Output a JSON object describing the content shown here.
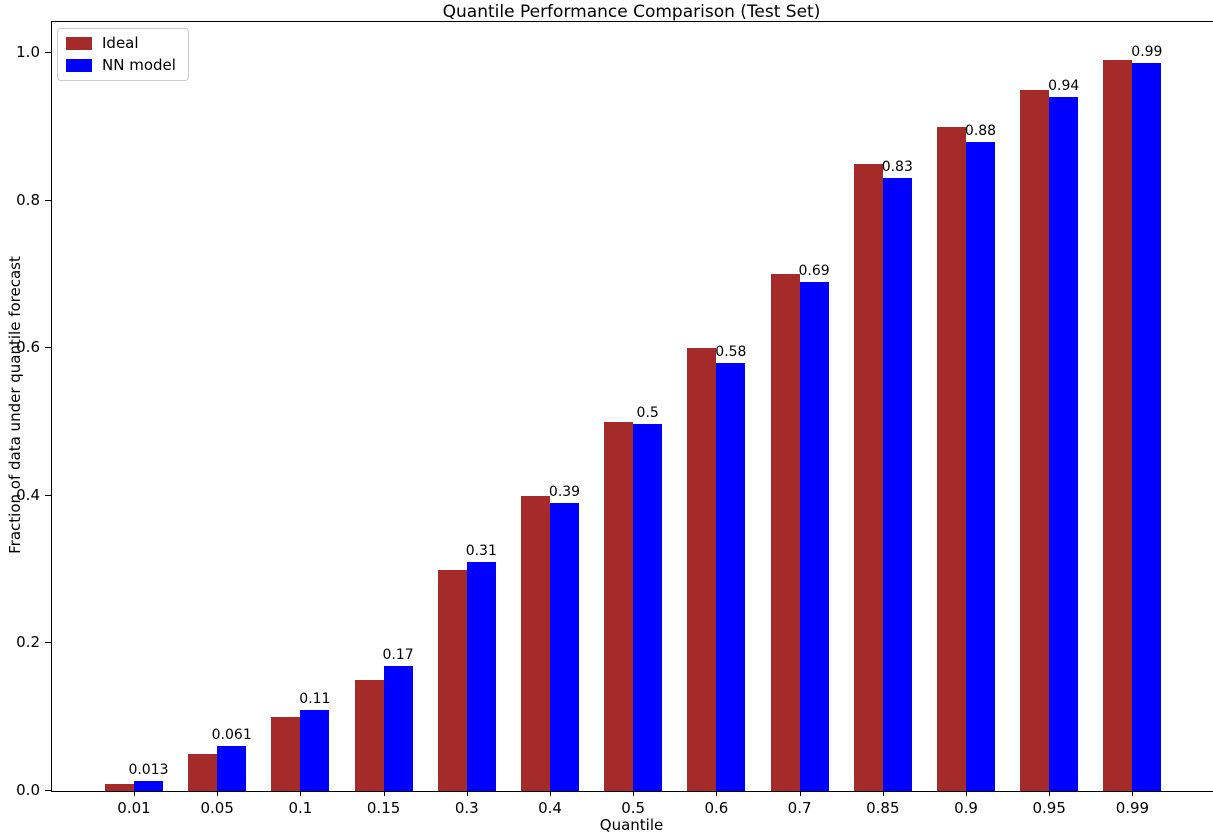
{
  "chart_data": {
    "type": "bar",
    "title": "Quantile Performance Comparison (Test Set)",
    "xlabel": "Quantile",
    "ylabel": "Fraction of data under quantile forecast",
    "categories": [
      "0.01",
      "0.05",
      "0.1",
      "0.15",
      "0.3",
      "0.4",
      "0.5",
      "0.6",
      "0.7",
      "0.85",
      "0.9",
      "0.95",
      "0.99"
    ],
    "series": [
      {
        "name": "Ideal",
        "color": "#A52A2A",
        "values": [
          0.01,
          0.05,
          0.1,
          0.15,
          0.3,
          0.4,
          0.5,
          0.6,
          0.7,
          0.85,
          0.9,
          0.95,
          0.99
        ]
      },
      {
        "name": "NN model",
        "color": "#0000FF",
        "values": [
          0.013,
          0.061,
          0.11,
          0.17,
          0.31,
          0.39,
          0.497,
          0.58,
          0.69,
          0.83,
          0.88,
          0.94,
          0.987
        ],
        "bar_labels": [
          "0.013",
          "0.061",
          "0.11",
          "0.17",
          "0.31",
          "0.39",
          "0.5",
          "0.58",
          "0.69",
          "0.83",
          "0.88",
          "0.94",
          "0.99"
        ]
      }
    ],
    "yticks": [
      "0.0",
      "0.2",
      "0.4",
      "0.6",
      "0.8",
      "1.0"
    ],
    "ylim": [
      0,
      1.042
    ],
    "grid": false,
    "legend_position": "upper left",
    "background": "#FFFFFF"
  }
}
